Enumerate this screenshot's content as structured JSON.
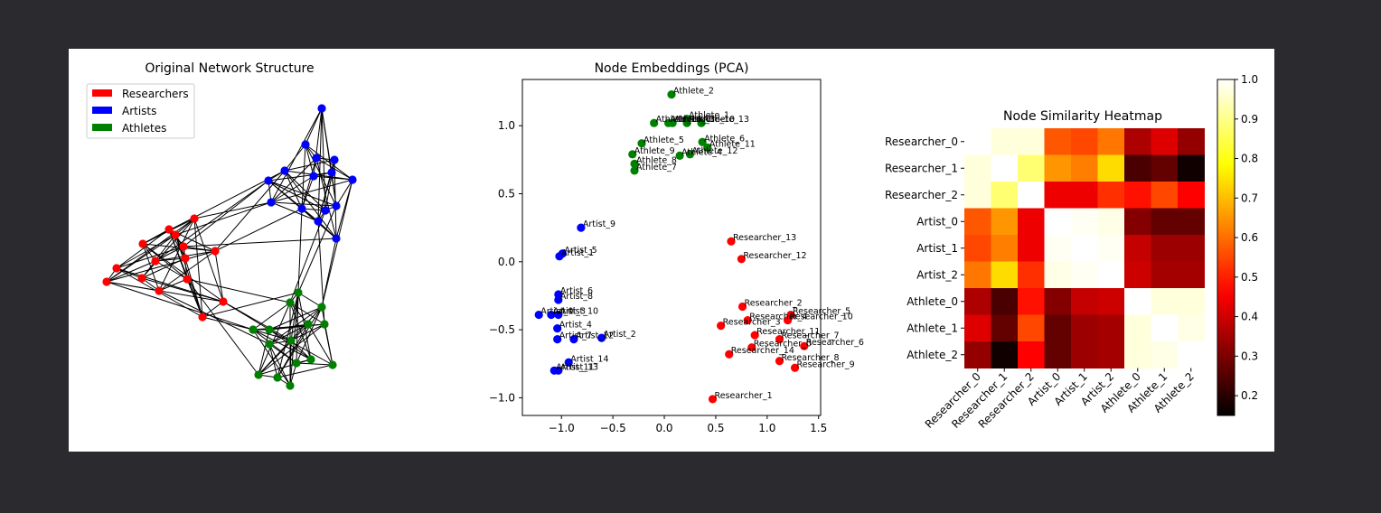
{
  "colors": {
    "researchers": "#ff0000",
    "artists": "#0000ff",
    "athletes": "#008000",
    "edges": "#000000"
  },
  "chart_data": [
    {
      "type": "network",
      "title": "Original Network Structure",
      "legend": {
        "placement": "top-left",
        "entries": [
          "Researchers",
          "Artists",
          "Athletes"
        ]
      },
      "groups": [
        "Researchers",
        "Artists",
        "Athletes"
      ],
      "nodes_per_group": 15
    },
    {
      "type": "scatter",
      "title": "Node Embeddings (PCA)",
      "xlim": [
        -1.38,
        1.52
      ],
      "ylim": [
        -1.13,
        1.34
      ],
      "xticks": [
        -1.0,
        -0.5,
        0.0,
        0.5,
        1.0,
        1.5
      ],
      "yticks": [
        -1.0,
        -0.5,
        0.0,
        0.5,
        1.0
      ],
      "xtick_labels": [
        "−1.0",
        "−0.5",
        "0.0",
        "0.5",
        "1.0",
        "1.5"
      ],
      "ytick_labels": [
        "−1.0",
        "−0.5",
        "0.0",
        "0.5",
        "1.0"
      ],
      "points": [
        {
          "label": "Athlete_2",
          "x": 0.07,
          "y": 1.23,
          "group": "Athletes"
        },
        {
          "label": "Athlete_1",
          "x": 0.22,
          "y": 1.05,
          "group": "Athletes"
        },
        {
          "label": "Athlete_13",
          "x": 0.36,
          "y": 1.02,
          "group": "Athletes"
        },
        {
          "label": "Athlete_14",
          "x": -0.1,
          "y": 1.02,
          "group": "Athletes"
        },
        {
          "label": "Athlete_0",
          "x": 0.04,
          "y": 1.02,
          "group": "Athletes"
        },
        {
          "label": "Athlete_3",
          "x": 0.08,
          "y": 1.02,
          "group": "Athletes"
        },
        {
          "label": "Athlete_10",
          "x": 0.22,
          "y": 1.02,
          "group": "Athletes"
        },
        {
          "label": "Athlete_5",
          "x": -0.22,
          "y": 0.87,
          "group": "Athletes"
        },
        {
          "label": "Athlete_6",
          "x": 0.37,
          "y": 0.88,
          "group": "Athletes"
        },
        {
          "label": "Athlete_11",
          "x": 0.42,
          "y": 0.84,
          "group": "Athletes"
        },
        {
          "label": "Athlete_9",
          "x": -0.31,
          "y": 0.79,
          "group": "Athletes"
        },
        {
          "label": "Athlete_4",
          "x": 0.15,
          "y": 0.78,
          "group": "Athletes"
        },
        {
          "label": "Athlete_12",
          "x": 0.25,
          "y": 0.79,
          "group": "Athletes"
        },
        {
          "label": "Athlete_8",
          "x": -0.29,
          "y": 0.72,
          "group": "Athletes"
        },
        {
          "label": "Athlete_7",
          "x": -0.29,
          "y": 0.67,
          "group": "Athletes"
        },
        {
          "label": "Artist_9",
          "x": -0.81,
          "y": 0.25,
          "group": "Artists"
        },
        {
          "label": "Artist_5",
          "x": -0.99,
          "y": 0.06,
          "group": "Artists"
        },
        {
          "label": "Artist_1",
          "x": -1.02,
          "y": 0.04,
          "group": "Artists"
        },
        {
          "label": "Artist_6",
          "x": -1.03,
          "y": -0.24,
          "group": "Artists"
        },
        {
          "label": "Artist_8",
          "x": -1.03,
          "y": -0.28,
          "group": "Artists"
        },
        {
          "label": "Artist_0",
          "x": -1.22,
          "y": -0.39,
          "group": "Artists"
        },
        {
          "label": "Artist_3",
          "x": -1.1,
          "y": -0.39,
          "group": "Artists"
        },
        {
          "label": "Artist_10",
          "x": -1.03,
          "y": -0.39,
          "group": "Artists"
        },
        {
          "label": "Artist_4",
          "x": -1.04,
          "y": -0.49,
          "group": "Artists"
        },
        {
          "label": "Artist_2",
          "x": -0.61,
          "y": -0.56,
          "group": "Artists"
        },
        {
          "label": "Artist_7",
          "x": -1.04,
          "y": -0.57,
          "group": "Artists"
        },
        {
          "label": "Artist_12",
          "x": -0.88,
          "y": -0.57,
          "group": "Artists"
        },
        {
          "label": "Artist_14",
          "x": -0.93,
          "y": -0.74,
          "group": "Artists"
        },
        {
          "label": "Artist_11",
          "x": -1.07,
          "y": -0.8,
          "group": "Artists"
        },
        {
          "label": "Artist_13",
          "x": -1.03,
          "y": -0.8,
          "group": "Artists"
        },
        {
          "label": "Researcher_13",
          "x": 0.65,
          "y": 0.15,
          "group": "Researchers"
        },
        {
          "label": "Researcher_12",
          "x": 0.75,
          "y": 0.02,
          "group": "Researchers"
        },
        {
          "label": "Researcher_2",
          "x": 0.76,
          "y": -0.33,
          "group": "Researchers"
        },
        {
          "label": "Researcher_5",
          "x": 1.23,
          "y": -0.39,
          "group": "Researchers"
        },
        {
          "label": "Researcher_4",
          "x": 0.81,
          "y": -0.43,
          "group": "Researchers"
        },
        {
          "label": "Researcher_10",
          "x": 1.2,
          "y": -0.43,
          "group": "Researchers"
        },
        {
          "label": "Researcher_3",
          "x": 0.55,
          "y": -0.47,
          "group": "Researchers"
        },
        {
          "label": "Researcher_11",
          "x": 0.88,
          "y": -0.54,
          "group": "Researchers"
        },
        {
          "label": "Researcher_7",
          "x": 1.12,
          "y": -0.57,
          "group": "Researchers"
        },
        {
          "label": "Researcher_6",
          "x": 1.36,
          "y": -0.62,
          "group": "Researchers"
        },
        {
          "label": "Researcher_0",
          "x": 0.85,
          "y": -0.63,
          "group": "Researchers"
        },
        {
          "label": "Researcher_14",
          "x": 0.63,
          "y": -0.68,
          "group": "Researchers"
        },
        {
          "label": "Researcher_8",
          "x": 1.12,
          "y": -0.73,
          "group": "Researchers"
        },
        {
          "label": "Researcher_9",
          "x": 1.27,
          "y": -0.78,
          "group": "Researchers"
        },
        {
          "label": "Researcher_1",
          "x": 0.47,
          "y": -1.01,
          "group": "Researchers"
        }
      ]
    },
    {
      "type": "heatmap",
      "title": "Node Similarity Heatmap",
      "labels": [
        "Researcher_0",
        "Researcher_1",
        "Researcher_2",
        "Artist_0",
        "Artist_1",
        "Artist_2",
        "Athlete_0",
        "Athlete_1",
        "Athlete_2"
      ],
      "values": [
        [
          1.0,
          0.97,
          0.97,
          0.57,
          0.55,
          0.61,
          0.36,
          0.42,
          0.33
        ],
        [
          0.97,
          1.0,
          0.88,
          0.65,
          0.62,
          0.74,
          0.24,
          0.27,
          0.17
        ],
        [
          0.97,
          0.88,
          1.0,
          0.44,
          0.44,
          0.52,
          0.48,
          0.55,
          0.46
        ],
        [
          0.57,
          0.65,
          0.44,
          1.0,
          0.99,
          0.98,
          0.31,
          0.27,
          0.27
        ],
        [
          0.55,
          0.62,
          0.44,
          0.99,
          1.0,
          0.99,
          0.39,
          0.34,
          0.34
        ],
        [
          0.61,
          0.74,
          0.52,
          0.98,
          0.99,
          1.0,
          0.4,
          0.35,
          0.35
        ],
        [
          0.36,
          0.24,
          0.48,
          0.31,
          0.39,
          0.4,
          1.0,
          0.97,
          0.97
        ],
        [
          0.42,
          0.27,
          0.55,
          0.27,
          0.34,
          0.35,
          0.97,
          1.0,
          0.98
        ],
        [
          0.33,
          0.17,
          0.46,
          0.27,
          0.34,
          0.35,
          0.97,
          0.98,
          1.0
        ]
      ],
      "colormap": "hot",
      "vmin": 0.15,
      "vmax": 1.0,
      "colorbar_ticks": [
        "0.2",
        "0.3",
        "0.4",
        "0.5",
        "0.6",
        "0.7",
        "0.8",
        "0.9",
        "1.0"
      ]
    }
  ]
}
